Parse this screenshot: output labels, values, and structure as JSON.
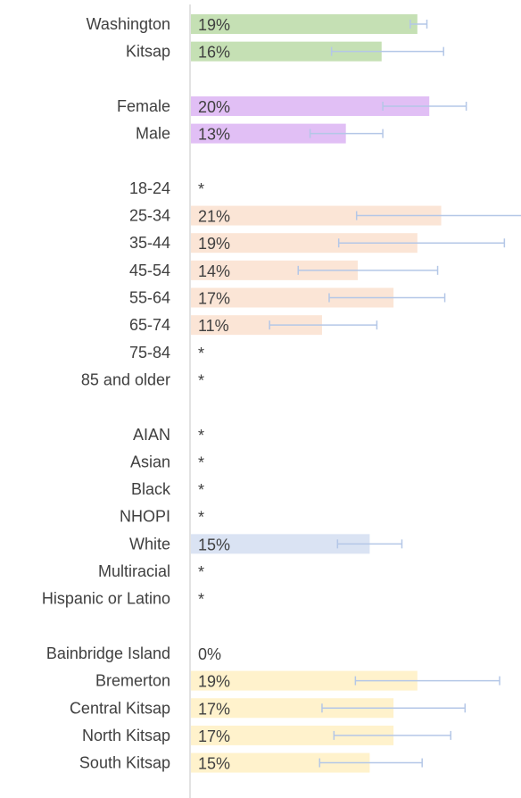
{
  "chart_data": {
    "type": "bar",
    "orientation": "horizontal",
    "xlim": [
      0,
      28
    ],
    "rows": [
      {
        "label": "Washington",
        "value": 19,
        "display": "19%",
        "err_low": 18.4,
        "err_high": 19.8,
        "color": "#c5e0b4"
      },
      {
        "label": "Kitsap",
        "value": 16,
        "display": "16%",
        "err_low": 11.8,
        "err_high": 21.2,
        "color": "#c5e0b4"
      },
      {
        "label": "",
        "value": null,
        "display": ""
      },
      {
        "label": "Female",
        "value": 20,
        "display": "20%",
        "err_low": 16.1,
        "err_high": 23.1,
        "color": "#e1bff5"
      },
      {
        "label": "Male",
        "value": 13,
        "display": "13%",
        "err_low": 10.0,
        "err_high": 16.1,
        "color": "#e1bff5"
      },
      {
        "label": "",
        "value": null,
        "display": ""
      },
      {
        "label": "18-24",
        "value": null,
        "display": "*"
      },
      {
        "label": "25-34",
        "value": 21,
        "display": "21%",
        "err_low": 13.9,
        "err_high": 28.1,
        "color": "#fbe5d6"
      },
      {
        "label": "35-44",
        "value": 19,
        "display": "19%",
        "err_low": 12.4,
        "err_high": 26.3,
        "color": "#fbe5d6"
      },
      {
        "label": "45-54",
        "value": 14,
        "display": "14%",
        "err_low": 9.0,
        "err_high": 20.7,
        "color": "#fbe5d6"
      },
      {
        "label": "55-64",
        "value": 17,
        "display": "17%",
        "err_low": 11.6,
        "err_high": 21.3,
        "color": "#fbe5d6"
      },
      {
        "label": "65-74",
        "value": 11,
        "display": "11%",
        "err_low": 6.6,
        "err_high": 15.6,
        "color": "#fbe5d6"
      },
      {
        "label": "75-84",
        "value": null,
        "display": "*"
      },
      {
        "label": "85 and older",
        "value": null,
        "display": "*"
      },
      {
        "label": "",
        "value": null,
        "display": ""
      },
      {
        "label": "AIAN",
        "value": null,
        "display": "*"
      },
      {
        "label": "Asian",
        "value": null,
        "display": "*"
      },
      {
        "label": "Black",
        "value": null,
        "display": "*"
      },
      {
        "label": "NHOPI",
        "value": null,
        "display": "*"
      },
      {
        "label": "White",
        "value": 15,
        "display": "15%",
        "err_low": 12.3,
        "err_high": 17.7,
        "color": "#dae3f3"
      },
      {
        "label": "Multiracial",
        "value": null,
        "display": "*"
      },
      {
        "label": "Hispanic or Latino",
        "value": null,
        "display": "*"
      },
      {
        "label": "",
        "value": null,
        "display": ""
      },
      {
        "label": "Bainbridge Island",
        "value": 0,
        "display": "0%"
      },
      {
        "label": "Bremerton",
        "value": 19,
        "display": "19%",
        "err_low": 13.8,
        "err_high": 25.9,
        "color": "#fff2cc"
      },
      {
        "label": "Central Kitsap",
        "value": 17,
        "display": "17%",
        "err_low": 11.0,
        "err_high": 23.0,
        "color": "#fff2cc"
      },
      {
        "label": "North Kitsap",
        "value": 17,
        "display": "17%",
        "err_low": 12.0,
        "err_high": 21.8,
        "color": "#fff2cc"
      },
      {
        "label": "South Kitsap",
        "value": 15,
        "display": "15%",
        "err_low": 10.8,
        "err_high": 19.4,
        "color": "#fff2cc"
      }
    ],
    "error_bar_color": "#b4c7e7",
    "axis_color": "#d9d9d9"
  }
}
